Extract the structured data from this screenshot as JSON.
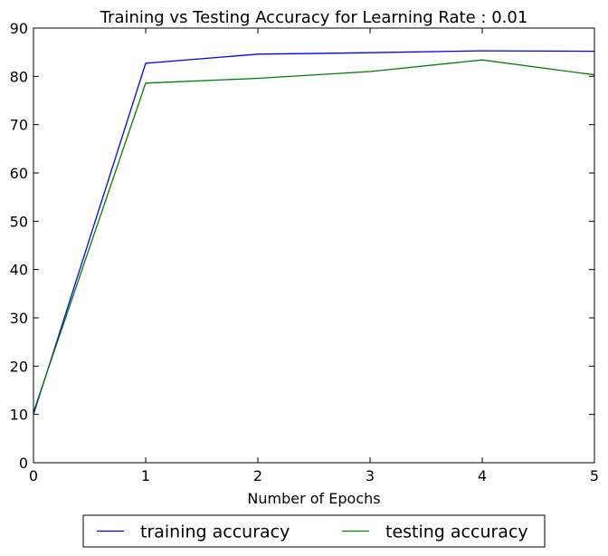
{
  "chart_data": {
    "type": "line",
    "title": "Training vs Testing Accuracy for Learning Rate : 0.01",
    "xlabel": "Number of Epochs",
    "ylabel": "",
    "x": [
      0,
      1,
      2,
      3,
      4,
      5
    ],
    "xlim": [
      0,
      5
    ],
    "ylim": [
      0,
      90
    ],
    "xticks": [
      "0",
      "1",
      "2",
      "3",
      "4",
      "5"
    ],
    "yticks": [
      "0",
      "10",
      "20",
      "30",
      "40",
      "50",
      "60",
      "70",
      "80",
      "90"
    ],
    "grid": false,
    "legend_position": "bottom-center",
    "series": [
      {
        "name": "training accuracy",
        "color": "#0000ff",
        "values": [
          10.0,
          82.7,
          84.6,
          84.9,
          85.3,
          85.2
        ]
      },
      {
        "name": "testing accuracy",
        "color": "#008000",
        "values": [
          10.5,
          78.6,
          79.6,
          81.0,
          83.4,
          80.3
        ]
      }
    ]
  }
}
